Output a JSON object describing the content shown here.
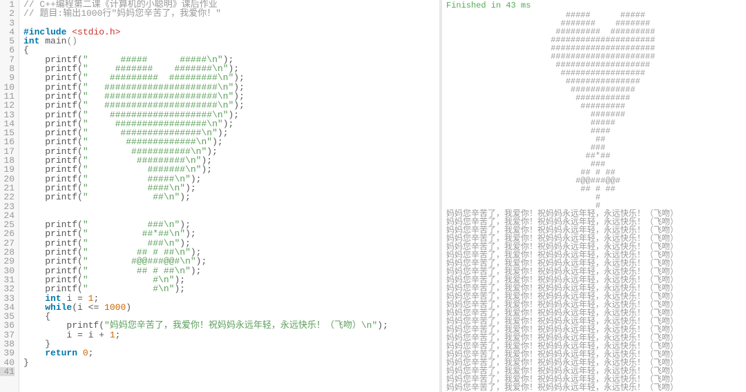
{
  "editor": {
    "line_count": 41,
    "active_line": 41,
    "colors": {
      "gutter_bg": "#f7f7f7",
      "gutter_text": "#999999",
      "comment": "#999999",
      "keyword": "#0077aa",
      "header": "#cc3333",
      "string": "#5a9e5a",
      "number": "#cc6600"
    },
    "lines": {
      "1": {
        "type": "comment",
        "text": "// C++编程第二课《计算机的小聪明》课后作业"
      },
      "2": {
        "type": "comment",
        "text": "// 题目:输出1000行\"妈妈您辛苦了，我爱你！\""
      },
      "3": {
        "type": "blank",
        "text": ""
      },
      "4": {
        "type": "include",
        "kw": "#include ",
        "hdr": "<stdio.h>"
      },
      "5": {
        "type": "main",
        "kw": "int ",
        "fn": "main",
        "p": "()"
      },
      "6": {
        "type": "brace",
        "text": "{"
      },
      "7": {
        "type": "printf",
        "fn": "printf",
        "str": "\"      #####      #####\\n\""
      },
      "8": {
        "type": "printf",
        "fn": "printf",
        "str": "\"     #######    #######\\n\""
      },
      "9": {
        "type": "printf",
        "fn": "printf",
        "str": "\"    #########  #########\\n\""
      },
      "10": {
        "type": "printf",
        "fn": "printf",
        "str": "\"   #####################\\n\""
      },
      "11": {
        "type": "printf",
        "fn": "printf",
        "str": "\"   #####################\\n\""
      },
      "12": {
        "type": "printf",
        "fn": "printf",
        "str": "\"   #####################\\n\""
      },
      "13": {
        "type": "printf",
        "fn": "printf",
        "str": "\"    ###################\\n\""
      },
      "14": {
        "type": "printf",
        "fn": "printf",
        "str": "\"     #################\\n\""
      },
      "15": {
        "type": "printf",
        "fn": "printf",
        "str": "\"      ###############\\n\""
      },
      "16": {
        "type": "printf",
        "fn": "printf",
        "str": "\"       #############\\n\""
      },
      "17": {
        "type": "printf",
        "fn": "printf",
        "str": "\"        ###########\\n\""
      },
      "18": {
        "type": "printf",
        "fn": "printf",
        "str": "\"         #########\\n\""
      },
      "19": {
        "type": "printf",
        "fn": "printf",
        "str": "\"           #######\\n\""
      },
      "20": {
        "type": "printf",
        "fn": "printf",
        "str": "\"           #####\\n\""
      },
      "21": {
        "type": "printf",
        "fn": "printf",
        "str": "\"           ####\\n\""
      },
      "22": {
        "type": "printf",
        "fn": "printf",
        "str": "\"            ##\\n\""
      },
      "23": {
        "type": "blank",
        "text": ""
      },
      "24": {
        "type": "blank",
        "text": ""
      },
      "25": {
        "type": "printf",
        "fn": "printf",
        "str": "\"           ###\\n\""
      },
      "26": {
        "type": "printf",
        "fn": "printf",
        "str": "\"          ##*##\\n\""
      },
      "27": {
        "type": "printf",
        "fn": "printf",
        "str": "\"           ###\\n\""
      },
      "28": {
        "type": "printf",
        "fn": "printf",
        "str": "\"         ## # ##\\n\""
      },
      "29": {
        "type": "printf",
        "fn": "printf",
        "str": "\"        #@@###@@#\\n\""
      },
      "30": {
        "type": "printf",
        "fn": "printf",
        "str": "\"         ## # ##\\n\""
      },
      "31": {
        "type": "printf",
        "fn": "printf",
        "str": "\"            #\\n\""
      },
      "32": {
        "type": "printf",
        "fn": "printf",
        "str": "\"            #\\n\""
      },
      "33": {
        "type": "decl",
        "kw": "int ",
        "var": "i = ",
        "num": "1"
      },
      "34": {
        "type": "while",
        "kw": "while",
        "p": "(i <= ",
        "num": "1000",
        "p2": ")"
      },
      "35": {
        "type": "brace",
        "text": "    {"
      },
      "36": {
        "type": "printf2",
        "fn": "printf",
        "str": "\"妈妈您辛苦了，我爱你！祝妈妈永远年轻，永远快乐！（飞吻）\\n\""
      },
      "37": {
        "type": "assign",
        "text": "        i = i + ",
        "num": "1"
      },
      "38": {
        "type": "brace",
        "text": "    }"
      },
      "39": {
        "type": "return",
        "kw": "return ",
        "num": "0"
      },
      "40": {
        "type": "brace",
        "text": "}"
      },
      "41": {
        "type": "blank",
        "text": ""
      }
    }
  },
  "console": {
    "status": "Finished in 43 ms",
    "heart_lines": [
      "      #####      #####",
      "     #######    #######",
      "    #########  #########",
      "   #####################",
      "   #####################",
      "   #####################",
      "    ###################",
      "     #################",
      "      ###############",
      "       #############",
      "        ###########",
      "         #########",
      "           #######",
      "           #####",
      "           ####",
      "            ##",
      "           ###",
      "          ##*##",
      "           ###",
      "         ## # ##",
      "        #@@###@@#",
      "         ## # ##",
      "            #",
      "            #"
    ],
    "message": "妈妈您辛苦了，我爱你！祝妈妈永远年轻，永远快乐！（飞吻）",
    "message_repeat_visible": 22,
    "heart_indent_spaces": 18
  }
}
